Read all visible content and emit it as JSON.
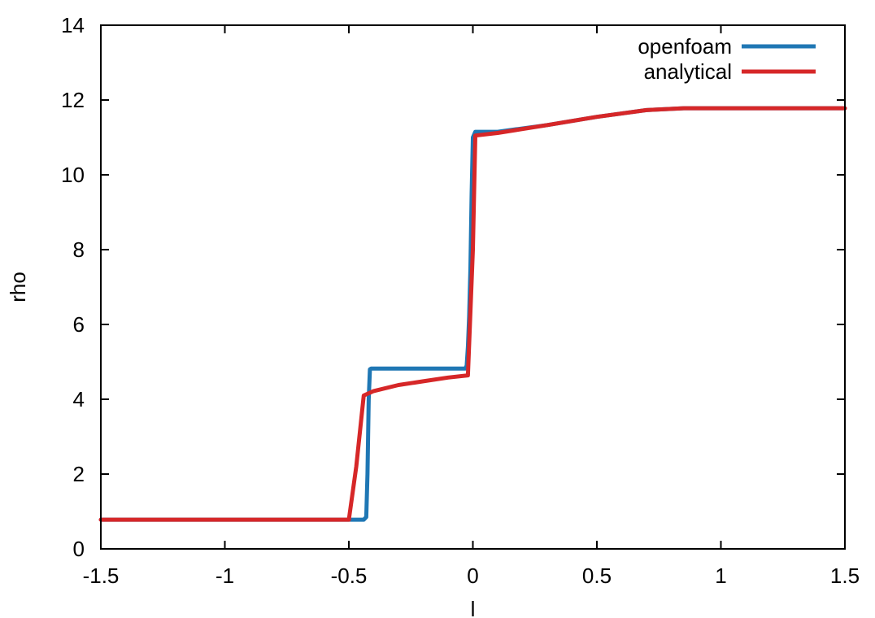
{
  "chart_data": {
    "type": "line",
    "title": "",
    "xlabel": "l",
    "ylabel": "rho",
    "xlim": [
      -1.5,
      1.5
    ],
    "ylim": [
      0,
      14
    ],
    "x_ticks": [
      -1.5,
      -1,
      -0.5,
      0,
      0.5,
      1,
      1.5
    ],
    "x_tick_labels": [
      "-1.5",
      "-1",
      "-0.5",
      "0",
      "0.5",
      "1",
      "1.5"
    ],
    "y_ticks": [
      0,
      2,
      4,
      6,
      8,
      10,
      12,
      14
    ],
    "y_tick_labels": [
      "0",
      "2",
      "4",
      "6",
      "8",
      "10",
      "12",
      "14"
    ],
    "grid": false,
    "legend": "top-right",
    "series": [
      {
        "name": "openfoam",
        "color": "#1f77b4",
        "x": [
          -1.5,
          -0.44,
          -0.43,
          -0.425,
          -0.42,
          -0.415,
          -0.41,
          -0.03,
          -0.025,
          -0.02,
          -0.015,
          -0.01,
          -0.005,
          0.0,
          0.01,
          0.1,
          0.3,
          0.5,
          0.7,
          0.85,
          1.5
        ],
        "y": [
          0.78,
          0.78,
          0.85,
          2.0,
          4.0,
          4.8,
          4.82,
          4.82,
          4.9,
          5.4,
          6.2,
          7.5,
          9.5,
          11.0,
          11.15,
          11.15,
          11.33,
          11.55,
          11.73,
          11.78,
          11.78
        ]
      },
      {
        "name": "analytical",
        "color": "#d62728",
        "x": [
          -1.5,
          -0.5,
          -0.47,
          -0.44,
          -0.4,
          -0.3,
          -0.2,
          -0.1,
          -0.02,
          0.0,
          0.01,
          0.1,
          0.3,
          0.5,
          0.7,
          0.85,
          1.5
        ],
        "y": [
          0.78,
          0.78,
          2.2,
          4.1,
          4.22,
          4.38,
          4.48,
          4.58,
          4.64,
          8.0,
          11.05,
          11.12,
          11.33,
          11.55,
          11.73,
          11.78,
          11.78
        ]
      }
    ]
  }
}
